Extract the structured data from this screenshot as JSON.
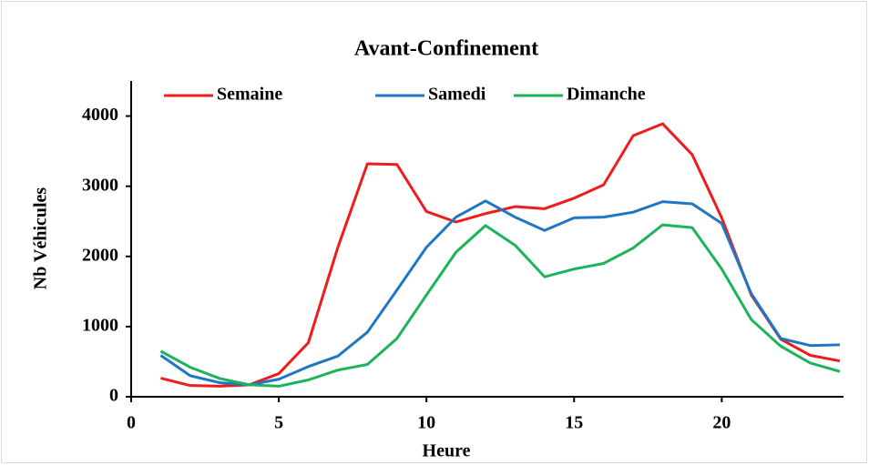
{
  "chart_data": {
    "type": "line",
    "title": "Avant-Confinement",
    "xlabel": "Heure",
    "ylabel": "Nb Véhicules",
    "x": [
      1,
      2,
      3,
      4,
      5,
      6,
      7,
      8,
      9,
      10,
      11,
      12,
      13,
      14,
      15,
      16,
      17,
      18,
      19,
      20,
      21,
      22,
      23,
      24
    ],
    "series": [
      {
        "name": "Semaine",
        "color": "#ee1c1c",
        "values": [
          265,
          160,
          150,
          170,
          330,
          770,
          2130,
          3320,
          3310,
          2640,
          2490,
          2610,
          2710,
          2680,
          2830,
          3020,
          3720,
          3890,
          3450,
          2550,
          1450,
          820,
          590,
          510
        ]
      },
      {
        "name": "Samedi",
        "color": "#1f77c4",
        "values": [
          590,
          300,
          200,
          170,
          250,
          430,
          580,
          920,
          1520,
          2130,
          2560,
          2790,
          2560,
          2370,
          2550,
          2560,
          2630,
          2780,
          2750,
          2470,
          1470,
          830,
          730,
          740
        ]
      },
      {
        "name": "Dimanche",
        "color": "#1db35a",
        "values": [
          650,
          420,
          260,
          170,
          150,
          240,
          380,
          460,
          830,
          1450,
          2060,
          2440,
          2160,
          1710,
          1820,
          1900,
          2120,
          2450,
          2410,
          1820,
          1100,
          720,
          480,
          360
        ]
      }
    ],
    "xlim": [
      0,
      24
    ],
    "xticks": [
      0,
      5,
      10,
      15,
      20
    ],
    "ylim": [
      0,
      4500
    ],
    "yticks": [
      0,
      1000,
      2000,
      3000,
      4000
    ],
    "legend": "top"
  }
}
